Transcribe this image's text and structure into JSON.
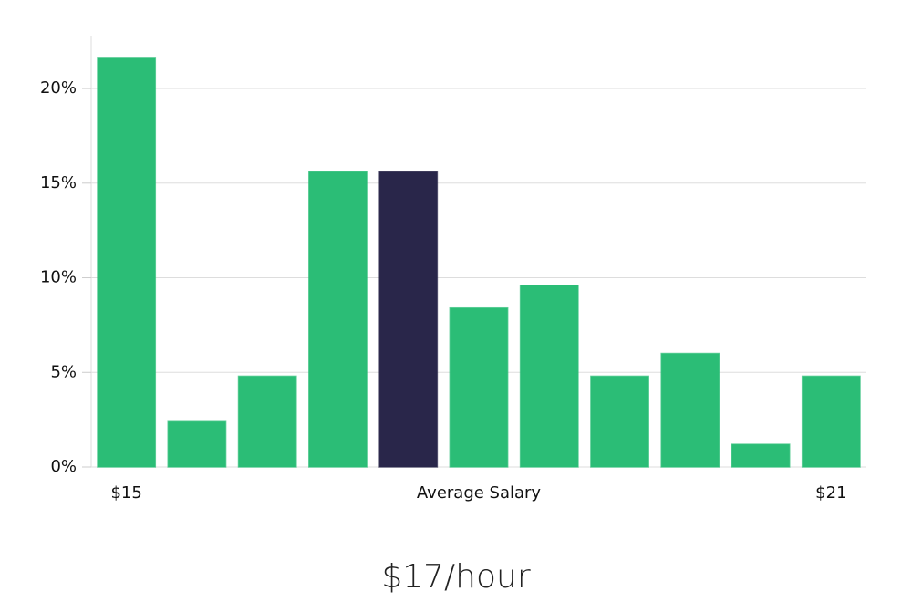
{
  "chart_data": {
    "type": "bar",
    "subtitle": "$17/hour",
    "categories": [
      "$15",
      null,
      null,
      null,
      null,
      "Average Salary",
      null,
      null,
      null,
      null,
      "$21"
    ],
    "values": [
      21.6,
      2.4,
      4.8,
      15.6,
      15.6,
      8.4,
      9.6,
      4.8,
      6.0,
      1.2,
      4.8
    ],
    "colors": [
      "#2bbd76",
      "#2bbd76",
      "#2bbd76",
      "#2bbd76",
      "#29264a",
      "#2bbd76",
      "#2bbd76",
      "#2bbd76",
      "#2bbd76",
      "#2bbd76",
      "#2bbd76"
    ],
    "ylim": [
      0,
      22.75
    ],
    "yticks": [
      {
        "value": 0,
        "label": "0%"
      },
      {
        "value": 5,
        "label": "5%"
      },
      {
        "value": 10,
        "label": "10%"
      },
      {
        "value": 15,
        "label": "15%"
      },
      {
        "value": 20,
        "label": "20%"
      }
    ],
    "grid": true
  }
}
